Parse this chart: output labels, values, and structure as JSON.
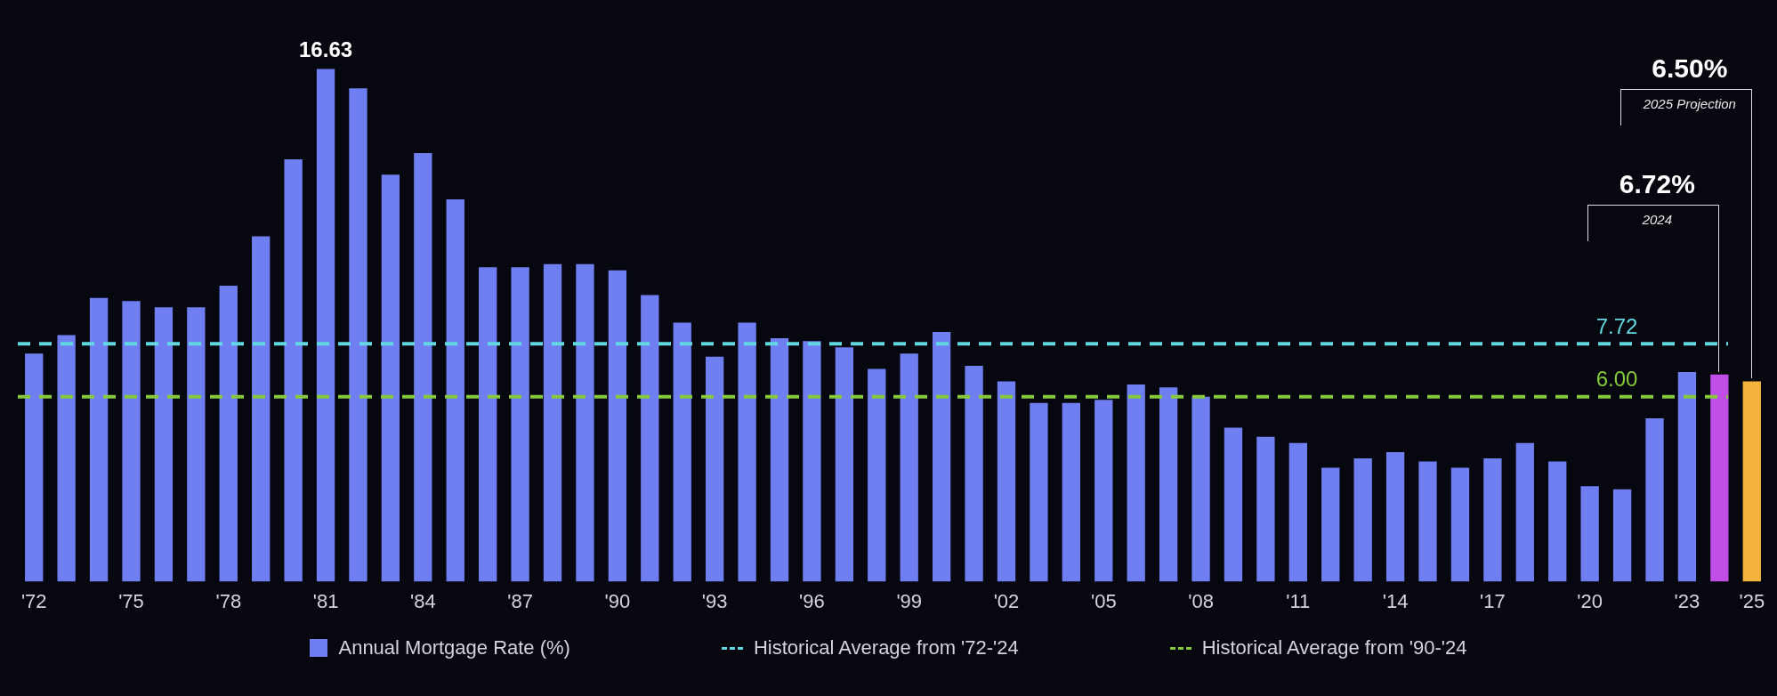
{
  "chart_data": {
    "type": "bar",
    "categories": [
      "'72",
      null,
      null,
      "'75",
      null,
      null,
      "'78",
      null,
      null,
      "'81",
      null,
      null,
      "'84",
      null,
      null,
      "'87",
      null,
      null,
      "'90",
      null,
      null,
      "'93",
      null,
      null,
      "'96",
      null,
      null,
      "'99",
      null,
      null,
      "'02",
      null,
      null,
      "'05",
      null,
      null,
      "'08",
      null,
      null,
      "'11",
      null,
      null,
      "'14",
      null,
      null,
      "'17",
      null,
      null,
      "'20",
      null,
      null,
      "'23",
      null,
      "'25"
    ],
    "series": [
      {
        "name": "Annual Mortgage Rate (%)",
        "color": "#6f7ff2",
        "colors": [
          "#6f7ff2",
          "#6f7ff2",
          "#6f7ff2",
          "#6f7ff2",
          "#6f7ff2",
          "#6f7ff2",
          "#6f7ff2",
          "#6f7ff2",
          "#6f7ff2",
          "#6f7ff2",
          "#6f7ff2",
          "#6f7ff2",
          "#6f7ff2",
          "#6f7ff2",
          "#6f7ff2",
          "#6f7ff2",
          "#6f7ff2",
          "#6f7ff2",
          "#6f7ff2",
          "#6f7ff2",
          "#6f7ff2",
          "#6f7ff2",
          "#6f7ff2",
          "#6f7ff2",
          "#6f7ff2",
          "#6f7ff2",
          "#6f7ff2",
          "#6f7ff2",
          "#6f7ff2",
          "#6f7ff2",
          "#6f7ff2",
          "#6f7ff2",
          "#6f7ff2",
          "#6f7ff2",
          "#6f7ff2",
          "#6f7ff2",
          "#6f7ff2",
          "#6f7ff2",
          "#6f7ff2",
          "#6f7ff2",
          "#6f7ff2",
          "#6f7ff2",
          "#6f7ff2",
          "#6f7ff2",
          "#6f7ff2",
          "#6f7ff2",
          "#6f7ff2",
          "#6f7ff2",
          "#6f7ff2",
          "#6f7ff2",
          "#6f7ff2",
          "#6f7ff2",
          "#c24ee8",
          "#f3b33c"
        ],
        "values": [
          7.4,
          8.0,
          9.2,
          9.1,
          8.9,
          8.9,
          9.6,
          11.2,
          13.7,
          16.63,
          16.0,
          13.2,
          13.9,
          12.4,
          10.2,
          10.2,
          10.3,
          10.3,
          10.1,
          9.3,
          8.4,
          7.3,
          8.4,
          7.9,
          7.8,
          7.6,
          6.9,
          7.4,
          8.1,
          7.0,
          6.5,
          5.8,
          5.8,
          5.9,
          6.4,
          6.3,
          6.0,
          5.0,
          4.7,
          4.5,
          3.7,
          4.0,
          4.2,
          3.9,
          3.7,
          4.0,
          4.5,
          3.9,
          3.1,
          3.0,
          5.3,
          6.8,
          6.72,
          6.5
        ],
        "value_labels": [
          null,
          null,
          null,
          null,
          null,
          null,
          null,
          null,
          null,
          "16.63",
          null,
          null,
          null,
          null,
          null,
          null,
          null,
          null,
          null,
          null,
          null,
          null,
          null,
          null,
          null,
          null,
          null,
          null,
          null,
          null,
          null,
          null,
          null,
          null,
          null,
          null,
          null,
          null,
          null,
          null,
          null,
          null,
          null,
          null,
          null,
          null,
          null,
          null,
          null,
          null,
          null,
          null,
          "6.72%",
          "6.50%"
        ]
      }
    ],
    "ref_lines": [
      {
        "axis": "y",
        "value": 7.72,
        "label": "Historical Average from '72-'24",
        "color": "#63d8e0",
        "line_style": "dashed"
      },
      {
        "axis": "y",
        "value": 6.0,
        "label": "Historical Average from '90-'24",
        "color": "#86c93c",
        "line_style": "dashed"
      }
    ],
    "annotations": [
      "2024",
      "2025 Projection",
      {
        "text": "7.72",
        "y": 7.72
      },
      {
        "text": "6.00",
        "y": 6.0
      }
    ],
    "legend": "bottom"
  }
}
